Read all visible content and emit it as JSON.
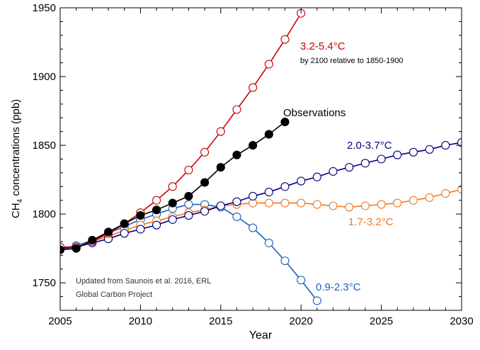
{
  "chart_data": {
    "type": "line",
    "xlabel": "Year",
    "ylabel": "CH",
    "ylabel_sub": "4",
    "ylabel_rest": " concentrations (ppb)",
    "xlim": [
      2005,
      2030
    ],
    "ylim": [
      1730,
      1950
    ],
    "x_ticks": [
      2005,
      2010,
      2015,
      2020,
      2025,
      2030
    ],
    "y_ticks": [
      1750,
      1800,
      1850,
      1900,
      1950
    ],
    "grid": false,
    "series": [
      {
        "name": "3.2-5.4°C",
        "color": "#cc0000",
        "marker": "open-circle",
        "x": [
          2005,
          2006,
          2007,
          2008,
          2009,
          2010,
          2011,
          2012,
          2013,
          2014,
          2015,
          2016,
          2017,
          2018,
          2019,
          2020
        ],
        "y": [
          1776,
          1776,
          1780,
          1786,
          1793,
          1801,
          1810,
          1820,
          1832,
          1845,
          1860,
          1876,
          1892,
          1909,
          1927,
          1946
        ]
      },
      {
        "name": "Observations",
        "color": "#000000",
        "marker": "filled-circle",
        "x": [
          2005,
          2006,
          2007,
          2008,
          2009,
          2010,
          2011,
          2012,
          2013,
          2014,
          2015,
          2016,
          2017,
          2018,
          2019
        ],
        "y": [
          1774,
          1775,
          1781,
          1787,
          1793,
          1799,
          1803,
          1808,
          1813,
          1823,
          1834,
          1843,
          1850,
          1858,
          1867
        ]
      },
      {
        "name": "2.0-3.7°C",
        "color": "#000080",
        "marker": "open-circle",
        "x": [
          2005,
          2006,
          2007,
          2008,
          2009,
          2010,
          2011,
          2012,
          2013,
          2014,
          2015,
          2016,
          2017,
          2018,
          2019,
          2020,
          2021,
          2022,
          2023,
          2024,
          2025,
          2026,
          2027,
          2028,
          2029,
          2030
        ],
        "y": [
          1775,
          1776,
          1779,
          1782,
          1786,
          1789,
          1792,
          1796,
          1799,
          1802,
          1806,
          1809,
          1813,
          1816,
          1820,
          1824,
          1827,
          1831,
          1834,
          1837,
          1840,
          1843,
          1845,
          1847,
          1850,
          1852
        ]
      },
      {
        "name": "1.7-3.2°C",
        "color": "#f07820",
        "marker": "open-circle",
        "x": [
          2005,
          2006,
          2007,
          2008,
          2009,
          2010,
          2011,
          2012,
          2013,
          2014,
          2015,
          2016,
          2017,
          2018,
          2019,
          2020,
          2021,
          2022,
          2023,
          2024,
          2025,
          2026,
          2027,
          2028,
          2029,
          2030
        ],
        "y": [
          1775,
          1776,
          1780,
          1784,
          1788,
          1792,
          1795,
          1798,
          1801,
          1803,
          1806,
          1807,
          1808,
          1808,
          1808,
          1808,
          1807,
          1806,
          1805,
          1806,
          1807,
          1808,
          1810,
          1812,
          1815,
          1818
        ]
      },
      {
        "name": "0.9-2.3°C",
        "color": "#1a5fbf",
        "marker": "open-circle",
        "x": [
          2005,
          2006,
          2007,
          2008,
          2009,
          2010,
          2011,
          2012,
          2013,
          2014,
          2015,
          2016,
          2017,
          2018,
          2019,
          2020,
          2021
        ],
        "y": [
          1775,
          1777,
          1781,
          1786,
          1791,
          1796,
          1800,
          1804,
          1807,
          1807,
          1805,
          1798,
          1790,
          1779,
          1766,
          1752,
          1737
        ]
      }
    ],
    "annotations": [
      {
        "text": "3.2-5.4°C",
        "color": "#cc0000",
        "bold": false,
        "size": "large"
      },
      {
        "text": "by 2100 relative to 1850-1900",
        "color": "#000000",
        "bold": false,
        "size": "small"
      },
      {
        "text": "Observations",
        "color": "#000000",
        "bold": false,
        "size": "large"
      },
      {
        "text": "2.0-3.7°C",
        "color": "#000080",
        "bold": false,
        "size": "large"
      },
      {
        "text": "1.7-3.2°C",
        "color": "#f07820",
        "bold": false,
        "size": "large"
      },
      {
        "text": "0.9-2.3°C",
        "color": "#1a5fbf",
        "bold": false,
        "size": "large"
      },
      {
        "text": "Updated from Saunois et al. 2016, ERL",
        "color": "#333333",
        "bold": false,
        "size": "small"
      },
      {
        "text": "Global Carbon Project",
        "color": "#333333",
        "bold": false,
        "size": "small"
      }
    ]
  }
}
